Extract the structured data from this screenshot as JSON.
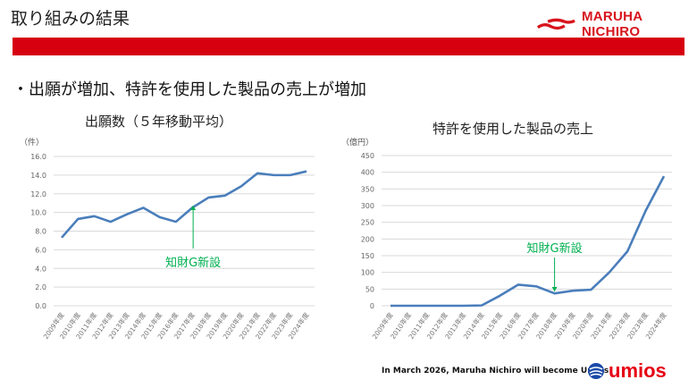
{
  "header": {
    "title": "取り組みの結果",
    "brand": "MARUHA NICHIRO"
  },
  "subtitle": "・出願が増加、特許を使用した製品の売上が増加",
  "footer": {
    "note": "In March 2026, Maruha Nichiro will become Umios",
    "brand": "umios"
  },
  "colors": {
    "line": "#4a7ebb",
    "annotation": "#00b050",
    "brand": "#d7000f"
  },
  "chart_data": [
    {
      "type": "line",
      "title": "出願数（５年移動平均）",
      "unit": "（件）",
      "categories": [
        "2009年度",
        "2010年度",
        "2011年度",
        "2012年度",
        "2013年度",
        "2014年度",
        "2015年度",
        "2016年度",
        "2017年度",
        "2018年度",
        "2019年度",
        "2020年度",
        "2021年度",
        "2022年度",
        "2023年度",
        "2024年度"
      ],
      "values": [
        7.3,
        9.3,
        9.6,
        9.0,
        9.8,
        10.5,
        9.5,
        9.0,
        10.5,
        11.6,
        11.8,
        12.8,
        14.2,
        14.0,
        14.0,
        14.4
      ],
      "ylim": [
        0,
        16
      ],
      "yticks": [
        "0.0",
        "2.0",
        "4.0",
        "6.0",
        "8.0",
        "10.0",
        "12.0",
        "14.0",
        "16.0"
      ],
      "grid": true,
      "annotation": {
        "text": "知財G新設",
        "at": "2017年度",
        "arrow": "up"
      }
    },
    {
      "type": "line",
      "title": "特許を使用した製品の売上",
      "unit": "（億円）",
      "categories": [
        "2009年度",
        "2010年度",
        "2011年度",
        "2012年度",
        "2013年度",
        "2014年度",
        "2015年度",
        "2016年度",
        "2017年度",
        "2018年度",
        "2019年度",
        "2020年度",
        "2021年度",
        "2022年度",
        "2023年度",
        "2024年度"
      ],
      "values": [
        0,
        0,
        0,
        0,
        0,
        1,
        30,
        63,
        58,
        37,
        45,
        48,
        100,
        163,
        285,
        388
      ],
      "ylim": [
        0,
        450
      ],
      "yticks": [
        "0",
        "50",
        "100",
        "150",
        "200",
        "250",
        "300",
        "350",
        "400",
        "450"
      ],
      "grid": true,
      "annotation": {
        "text": "知財G新設",
        "at": "2018年度",
        "arrow": "down"
      }
    }
  ]
}
